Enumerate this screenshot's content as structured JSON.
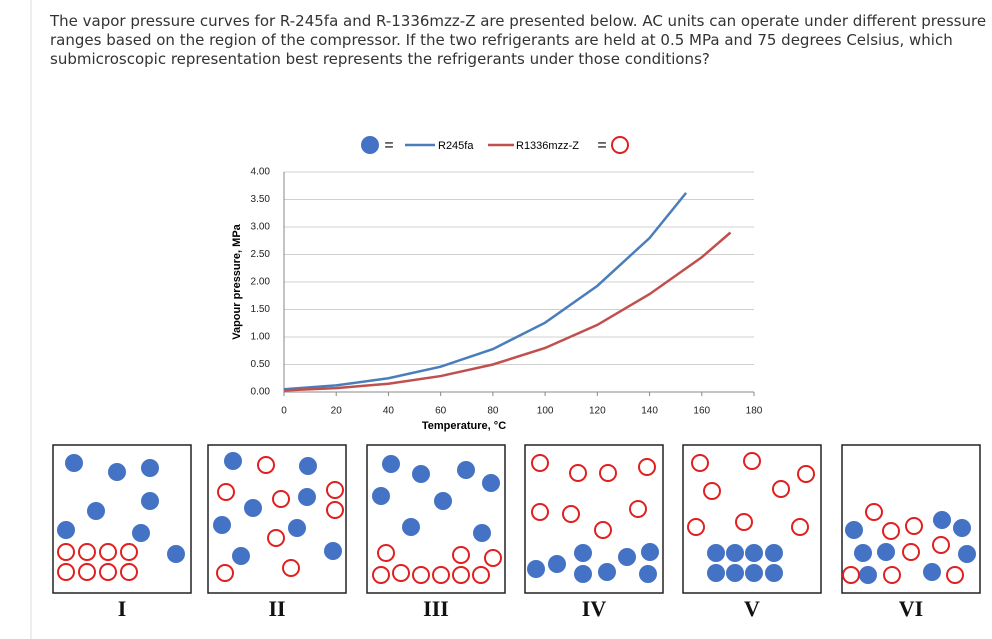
{
  "question": "The vapor pressure curves for R-245fa and R-1336mzz-Z are presented below. AC units can operate under different pressure ranges based on the region of the compressor. If the two refrigerants are held at 0.5 MPa and 75 degrees Celsius, which submicroscopic representation best represents the refrigerants under those conditions?",
  "chart_data": {
    "type": "line",
    "x_label": "Temperature, °C",
    "y_label": "Vapour pressure, MPa",
    "legend_symbol": "=",
    "xlim": [
      0,
      180
    ],
    "xticks": [
      0,
      20,
      40,
      60,
      80,
      100,
      120,
      140,
      160,
      180
    ],
    "ylim": [
      0,
      4
    ],
    "yticks": [
      {
        "value": 0,
        "label": "0.00"
      },
      {
        "value": 0.5,
        "label": "0.50"
      },
      {
        "value": 1,
        "label": "1.00"
      },
      {
        "value": 1.5,
        "label": "1.50"
      },
      {
        "value": 2,
        "label": "2.00"
      },
      {
        "value": 2.5,
        "label": "2.50"
      },
      {
        "value": 3,
        "label": "3.00"
      },
      {
        "value": 3.5,
        "label": "3.50"
      },
      {
        "value": 4,
        "label": "4.00"
      }
    ],
    "grid": true,
    "series": [
      {
        "name": "R245fa",
        "color": "#4a7ebb",
        "x": [
          0,
          20,
          40,
          60,
          80,
          100,
          120,
          140,
          154
        ],
        "values": [
          0.05,
          0.12,
          0.25,
          0.46,
          0.78,
          1.26,
          1.93,
          2.8,
          3.62
        ]
      },
      {
        "name": "R1336mzz-Z",
        "color": "#c0504d",
        "x": [
          0,
          20,
          40,
          60,
          80,
          100,
          120,
          140,
          160,
          171
        ],
        "values": [
          0.03,
          0.07,
          0.15,
          0.29,
          0.5,
          0.8,
          1.22,
          1.78,
          2.45,
          2.9
        ]
      }
    ]
  },
  "panels": [
    {
      "label": "I"
    },
    {
      "label": "II"
    },
    {
      "label": "III"
    },
    {
      "label": "IV"
    },
    {
      "label": "V"
    },
    {
      "label": "VI"
    }
  ]
}
